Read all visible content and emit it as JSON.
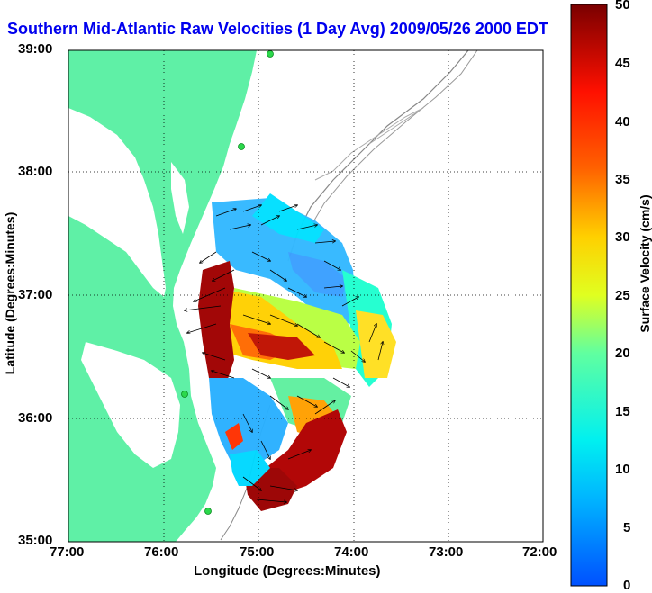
{
  "title": "Southern Mid-Atlantic Raw Velocities (1 Day Avg) 2009/05/26 2000 EDT",
  "axes": {
    "xlabel": "Longitude (Degrees:Minutes)",
    "ylabel": "Latitude (Degrees:Minutes)",
    "x_ticks": [
      "77:00",
      "76:00",
      "75:00",
      "74:00",
      "73:00",
      "72:00"
    ],
    "y_ticks": [
      "39:00",
      "38:00",
      "37:00",
      "36:00",
      "35:00"
    ]
  },
  "colorbar": {
    "label": "Surface Velocity (cm/s)",
    "ticks": [
      "50",
      "45",
      "40",
      "35",
      "30",
      "25",
      "20",
      "15",
      "10",
      "5",
      "0"
    ],
    "range": [
      0,
      50
    ]
  },
  "colors": {
    "land": "#5ff0a6",
    "water": "#ffffff",
    "title": "#0000ee",
    "contour": "#888888",
    "station": "#2bd84b"
  }
}
